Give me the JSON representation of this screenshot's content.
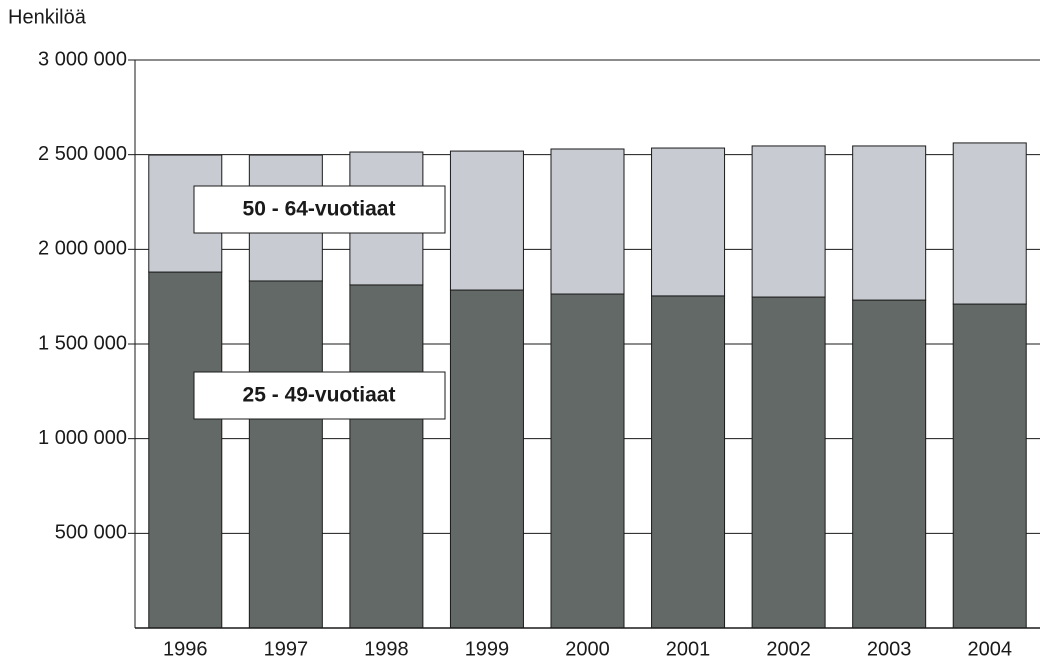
{
  "chart_data": {
    "type": "stacked-bar",
    "y_axis_label": "Henkilöä",
    "categories": [
      "1996",
      "1997",
      "1998",
      "1999",
      "2000",
      "2001",
      "2002",
      "2003",
      "2004"
    ],
    "series": [
      {
        "name": "25 - 49-vuotiaat",
        "color": "#636966",
        "values": [
          1880000,
          1833000,
          1812000,
          1785000,
          1764000,
          1754000,
          1748000,
          1732000,
          1711000
        ]
      },
      {
        "name": "50 - 64-vuotiaat",
        "color": "#c8cbd2",
        "values": [
          618000,
          665000,
          702000,
          734000,
          766000,
          781000,
          798000,
          814000,
          851000
        ]
      }
    ],
    "ylim": [
      0,
      3000000
    ],
    "yticks": [
      {
        "value": 500000,
        "label": "500 000"
      },
      {
        "value": 1000000,
        "label": "1 000 000"
      },
      {
        "value": 1500000,
        "label": "1 500 000"
      },
      {
        "value": 2000000,
        "label": "2 000 000"
      },
      {
        "value": 2500000,
        "label": "2 500 000"
      },
      {
        "value": 3000000,
        "label": "3 000 000"
      }
    ],
    "grid": true
  }
}
